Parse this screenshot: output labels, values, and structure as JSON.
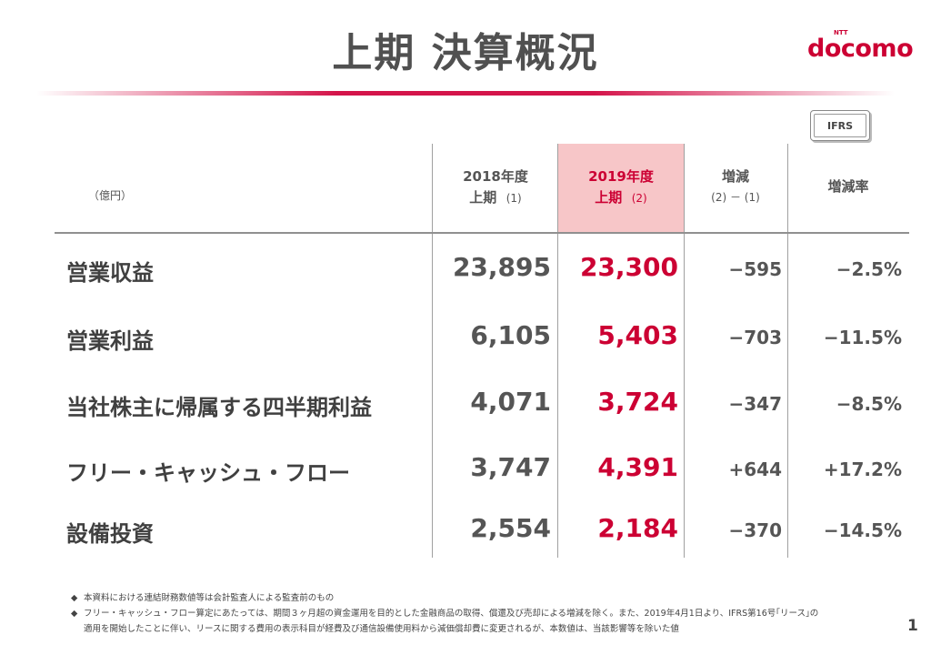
{
  "title": "上期 決算概況",
  "logo": {
    "brand": "docomo",
    "ntt": "NTT"
  },
  "badge": "IFRS",
  "table": {
    "unit": "（億円）",
    "columns": [
      {
        "line1": "2018年度",
        "line2": "上期",
        "sub": "(1)"
      },
      {
        "line1": "2019年度",
        "line2": "上期",
        "sub": "(2)"
      },
      {
        "line1": "増減",
        "line2": "(2) － (1)"
      },
      {
        "line1": "増減率"
      }
    ],
    "rows": [
      {
        "label": "営業収益",
        "fy2018": "23,895",
        "fy2019": "23,300",
        "change": "−595",
        "rate": "−2.5%"
      },
      {
        "label": "営業利益",
        "fy2018": "6,105",
        "fy2019": "5,403",
        "change": "−703",
        "rate": "−11.5%"
      },
      {
        "label": "当社株主に帰属する四半期利益",
        "fy2018": "4,071",
        "fy2019": "3,724",
        "change": "−347",
        "rate": "−8.5%"
      },
      {
        "label": "フリー・キャッシュ・フロー",
        "fy2018": "3,747",
        "fy2019": "4,391",
        "change": "+644",
        "rate": "+17.2%"
      },
      {
        "label": "設備投資",
        "fy2018": "2,554",
        "fy2019": "2,184",
        "change": "−370",
        "rate": "−14.5%"
      }
    ]
  },
  "notes": {
    "bullet": "◆",
    "n1": "本資料における連結財務数値等は会計監査人による監査前のもの",
    "n2a": "フリー・キャッシュ・フロー算定にあたっては、期間３ヶ月超の資金運用を目的とした金融商品の取得、償還及び売却による増減を除く。また、2019年4月1日より、IFRS第16号｢リース｣の",
    "n2b": "適用を開始したことに伴い、リースに関する費用の表示科目が経費及び通信設備使用料から減価償却費に変更されるが、本数値は、当該影響等を除いた値"
  },
  "page_number": "1"
}
